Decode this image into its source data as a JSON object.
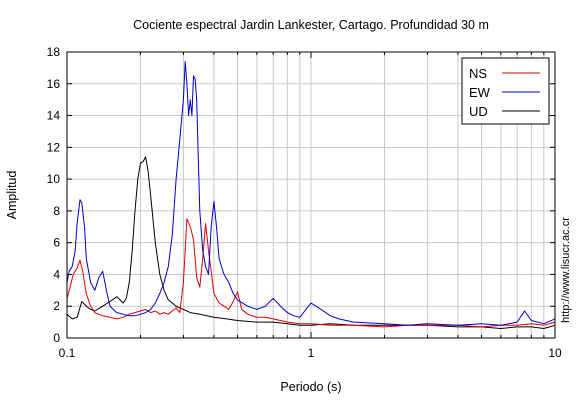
{
  "chart_data": {
    "type": "line",
    "title": "Cociente espectral Jardin Lankester, Cartago. Profundidad 30 m",
    "xlabel": "Periodo (s)",
    "ylabel": "Amplitud",
    "xscale": "log",
    "xlim": [
      0.1,
      10
    ],
    "ylim": [
      0,
      18
    ],
    "xticks": [
      0.1,
      1,
      10
    ],
    "xtick_labels": [
      "0.1",
      "1",
      "10"
    ],
    "yticks": [
      0,
      2,
      4,
      6,
      8,
      10,
      12,
      14,
      16,
      18
    ],
    "ytick_labels": [
      "0",
      "2",
      "4",
      "6",
      "8",
      "10",
      "12",
      "14",
      "16",
      "18"
    ],
    "grid": true,
    "legend_position": "top-right",
    "watermark": "http://www.lisucr.ac.cr",
    "colors": {
      "NS": "#e00000",
      "EW": "#0000cc",
      "UD": "#000000"
    },
    "series": [
      {
        "name": "NS",
        "color": "#e00000",
        "x": [
          0.1,
          0.103,
          0.106,
          0.11,
          0.113,
          0.116,
          0.12,
          0.125,
          0.13,
          0.14,
          0.15,
          0.16,
          0.17,
          0.18,
          0.19,
          0.2,
          0.21,
          0.22,
          0.23,
          0.24,
          0.25,
          0.26,
          0.27,
          0.28,
          0.29,
          0.3,
          0.31,
          0.32,
          0.33,
          0.34,
          0.35,
          0.36,
          0.37,
          0.38,
          0.39,
          0.4,
          0.42,
          0.44,
          0.46,
          0.48,
          0.5,
          0.52,
          0.55,
          0.6,
          0.65,
          0.7,
          0.8,
          0.9,
          1.0,
          1.2,
          1.5,
          2,
          2.5,
          3,
          4,
          5,
          6,
          7,
          8,
          9,
          10
        ],
        "values": [
          2.5,
          3.2,
          4.0,
          4.4,
          4.9,
          4.2,
          2.8,
          2.0,
          1.6,
          1.4,
          1.3,
          1.2,
          1.3,
          1.5,
          1.6,
          1.7,
          1.8,
          1.6,
          1.7,
          1.5,
          1.6,
          1.5,
          1.7,
          1.9,
          1.6,
          3.5,
          7.5,
          7.0,
          6.2,
          3.8,
          3.2,
          5.0,
          7.2,
          5.5,
          4.2,
          2.8,
          2.2,
          2.0,
          1.8,
          2.3,
          2.9,
          1.8,
          1.5,
          1.3,
          1.3,
          1.2,
          1.0,
          0.9,
          0.9,
          0.8,
          0.8,
          0.7,
          0.8,
          0.8,
          0.8,
          0.7,
          0.8,
          0.8,
          0.9,
          0.8,
          1.0
        ]
      },
      {
        "name": "EW",
        "color": "#0000cc",
        "x": [
          0.1,
          0.102,
          0.105,
          0.108,
          0.11,
          0.113,
          0.115,
          0.118,
          0.12,
          0.125,
          0.13,
          0.135,
          0.14,
          0.145,
          0.15,
          0.16,
          0.17,
          0.18,
          0.19,
          0.2,
          0.21,
          0.22,
          0.23,
          0.24,
          0.25,
          0.26,
          0.27,
          0.28,
          0.29,
          0.3,
          0.305,
          0.31,
          0.315,
          0.32,
          0.325,
          0.33,
          0.335,
          0.34,
          0.345,
          0.35,
          0.36,
          0.37,
          0.38,
          0.39,
          0.4,
          0.41,
          0.42,
          0.44,
          0.46,
          0.48,
          0.5,
          0.55,
          0.6,
          0.65,
          0.7,
          0.75,
          0.8,
          0.85,
          0.9,
          1.0,
          1.1,
          1.2,
          1.3,
          1.5,
          2,
          2.5,
          3,
          4,
          5,
          6,
          7,
          7.5,
          8,
          9,
          10
        ],
        "values": [
          3.5,
          4.2,
          4.5,
          5.5,
          7.2,
          8.7,
          8.5,
          7.0,
          5.0,
          3.5,
          3.0,
          3.8,
          4.2,
          3.0,
          2.0,
          1.6,
          1.5,
          1.4,
          1.4,
          1.5,
          1.6,
          1.8,
          2.2,
          2.8,
          3.5,
          4.5,
          6.5,
          10.0,
          12.5,
          15.0,
          17.4,
          16.0,
          14.0,
          15.0,
          14.0,
          16.5,
          16.3,
          15.0,
          11.5,
          8.0,
          5.5,
          4.5,
          4.0,
          7.0,
          8.6,
          7.0,
          5.0,
          4.0,
          3.5,
          2.8,
          2.4,
          2.0,
          1.8,
          2.0,
          2.5,
          2.0,
          1.6,
          1.4,
          1.3,
          2.2,
          1.8,
          1.4,
          1.2,
          1.0,
          0.9,
          0.8,
          0.9,
          0.8,
          0.9,
          0.8,
          1.0,
          1.7,
          1.1,
          0.9,
          1.2
        ]
      },
      {
        "name": "UD",
        "color": "#000000",
        "x": [
          0.1,
          0.105,
          0.11,
          0.115,
          0.12,
          0.125,
          0.13,
          0.14,
          0.15,
          0.16,
          0.165,
          0.17,
          0.175,
          0.18,
          0.185,
          0.19,
          0.195,
          0.2,
          0.205,
          0.21,
          0.215,
          0.22,
          0.23,
          0.24,
          0.25,
          0.26,
          0.27,
          0.28,
          0.3,
          0.32,
          0.35,
          0.4,
          0.45,
          0.5,
          0.6,
          0.7,
          0.8,
          0.9,
          1.0,
          1.2,
          1.5,
          2,
          3,
          4,
          5,
          6,
          7,
          8,
          9,
          10
        ],
        "values": [
          1.5,
          1.2,
          1.3,
          2.3,
          2.0,
          1.8,
          1.7,
          2.0,
          2.3,
          2.6,
          2.4,
          2.2,
          2.5,
          3.5,
          5.5,
          8.0,
          10.0,
          11.0,
          11.1,
          11.4,
          10.5,
          9.0,
          6.0,
          4.0,
          3.0,
          2.4,
          2.2,
          2.0,
          1.8,
          1.6,
          1.5,
          1.3,
          1.2,
          1.1,
          1.0,
          1.0,
          0.9,
          0.8,
          0.8,
          0.9,
          0.8,
          0.8,
          0.8,
          0.7,
          0.7,
          0.6,
          0.7,
          0.7,
          0.6,
          0.8
        ]
      }
    ]
  }
}
